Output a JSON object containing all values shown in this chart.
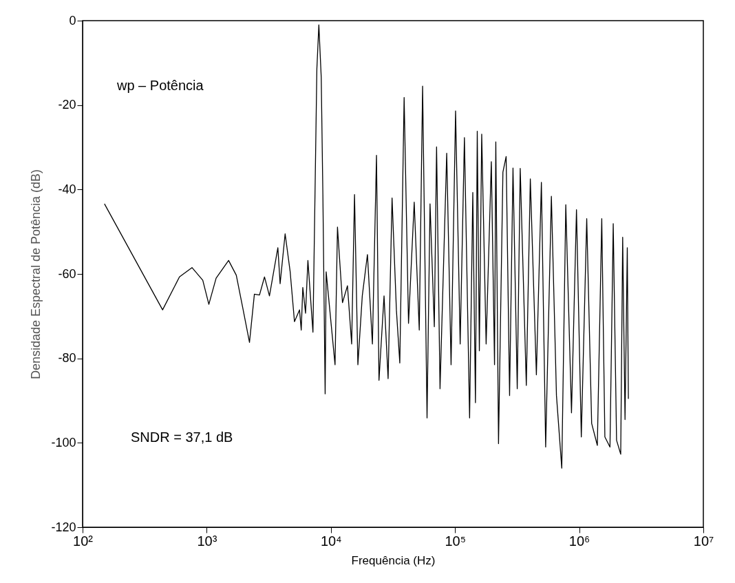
{
  "chart_data": {
    "type": "line",
    "xlabel": "Frequência (Hz)",
    "ylabel": "Densidade Espectral de Potência (dB)",
    "annotations": [
      "wp – Potência",
      "SNDR = 37,1 dB"
    ],
    "log": "x",
    "grid": false,
    "marker": "none",
    "line_style": "solid",
    "xlim": [
      100,
      10000000
    ],
    "xticks": [
      {
        "value": 100,
        "label": "10²"
      },
      {
        "value": 1000,
        "label": "10³"
      },
      {
        "value": 10000,
        "label": "10⁴"
      },
      {
        "value": 100000,
        "label": "10⁵"
      },
      {
        "value": 1000000,
        "label": "10⁶"
      },
      {
        "value": 10000000,
        "label": "10⁷"
      }
    ],
    "ylim": [
      -120,
      0
    ],
    "yticks": [
      -120,
      -100,
      -80,
      -60,
      -40,
      -20,
      0
    ],
    "series": [
      {
        "color": "#000000",
        "x": [
          150,
          441,
          603,
          762,
          929,
          1040,
          1190,
          1500,
          1730,
          1950,
          2210,
          2420,
          2660,
          2920,
          3200,
          3740,
          3900,
          4280,
          4700,
          5090,
          5590,
          5770,
          5940,
          6250,
          6530,
          7170,
          7710,
          8000,
          8360,
          8620,
          8990,
          9160,
          10800,
          11300,
          12400,
          13600,
          14700,
          15500,
          16500,
          17900,
          19700,
          21600,
          23300,
          24400,
          26800,
          28900,
          31100,
          33700,
          35900,
          38900,
          42200,
          46900,
          51500,
          54800,
          59500,
          62900,
          68100,
          71000,
          75700,
          85700,
          92900,
          101000,
          110000,
          119000,
          131000,
          139000,
          146000,
          151000,
          157000,
          164000,
          178000,
          196000,
          208000,
          213000,
          224000,
          243000,
          258000,
          275000,
          293000,
          317000,
          335000,
          375000,
          404000,
          452000,
          496000,
          537000,
          597000,
          656000,
          724000,
          780000,
          867000,
          951000,
          1040000,
          1150000,
          1260000,
          1400000,
          1520000,
          1610000,
          1770000,
          1880000,
          2000000,
          2160000,
          2240000,
          2340000,
          2440000,
          2490000
        ],
        "values": [
          -43.4,
          -68.5,
          -60.7,
          -58.5,
          -61.5,
          -67.2,
          -61,
          -56.8,
          -60.3,
          -68,
          -76.2,
          -64.8,
          -65,
          -60.7,
          -65.2,
          -53.8,
          -62.3,
          -50.5,
          -59.5,
          -71.3,
          -68.5,
          -73.3,
          -63.2,
          -69.3,
          -56.8,
          -73.8,
          -11.4,
          -1,
          -13.4,
          -41.2,
          -88.4,
          -59.5,
          -81.5,
          -48.9,
          -66.8,
          -62.8,
          -76.6,
          -41.2,
          -81.5,
          -65.2,
          -55.4,
          -76.6,
          -31.9,
          -85.2,
          -65.2,
          -84.8,
          -42,
          -68.5,
          -81.1,
          -18.2,
          -71.7,
          -43,
          -73.3,
          -15.5,
          -94.1,
          -43.4,
          -72.5,
          -29.9,
          -87.2,
          -31.4,
          -81.5,
          -21.4,
          -76.6,
          -27.7,
          -94.1,
          -40.7,
          -90.5,
          -26.2,
          -78.2,
          -26.9,
          -76.6,
          -33.4,
          -81.5,
          -28.7,
          -100.2,
          -35.9,
          -32.2,
          -88.8,
          -34.9,
          -87.2,
          -35,
          -86.4,
          -37.5,
          -83.9,
          -38.3,
          -101,
          -41.6,
          -88.8,
          -106,
          -43.6,
          -92.9,
          -44.8,
          -98.6,
          -46.9,
          -95.4,
          -100.6,
          -46.9,
          -98.6,
          -101,
          -48.1,
          -99.4,
          -102.7,
          -51.3,
          -94.5,
          -53.8,
          -89.6
        ]
      }
    ]
  }
}
